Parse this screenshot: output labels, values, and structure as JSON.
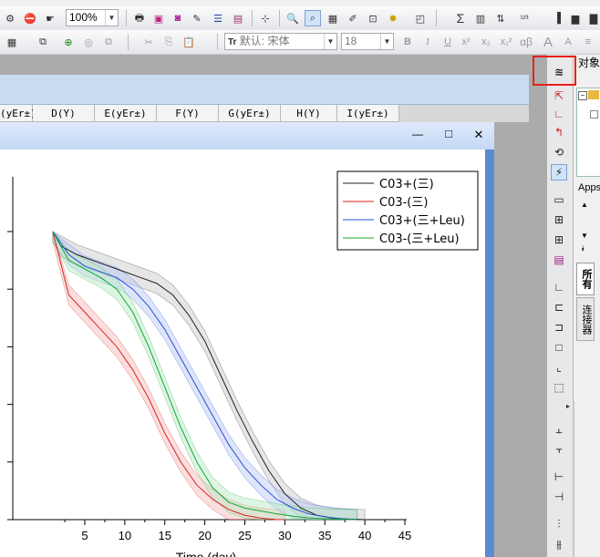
{
  "toolbar1": {
    "zoom": "100%",
    "sigma_icon": "Σ",
    "alphabeta_label": "αβ"
  },
  "toolbar2": {
    "font_prefix": "默认:",
    "font_name": "宋体",
    "font_size": "18",
    "bold": "B",
    "italic": "I",
    "underline": "U",
    "superscript": "x²",
    "subscript": "x₂",
    "supsub": "x₁²",
    "greek": "αβ",
    "grow_font": "A",
    "shrink_font": "A"
  },
  "worksheet": {
    "columns": [
      "(yEr±)",
      "D(Y)",
      "E(yEr±)",
      "F(Y)",
      "G(yEr±)",
      "H(Y)",
      "I(yEr±)"
    ]
  },
  "graph_window": {
    "minimize": "—",
    "maximize": "□",
    "close": "✕"
  },
  "right_panel": {
    "title": "对象",
    "apps_label": "Apps",
    "tab_all": "所有",
    "tab_connectors": "连接器"
  },
  "chart_data": {
    "type": "line",
    "xlabel": "Time (day)",
    "xlim": [
      -4,
      45
    ],
    "ylim": [
      0,
      1.0
    ],
    "xticks": [
      "5",
      "10",
      "15",
      "20",
      "25",
      "30",
      "35",
      "40",
      "45"
    ],
    "legend_position": "top-right",
    "series": [
      {
        "name": "C03+(三)",
        "color": "#202020",
        "band": "#c8c8c8",
        "x": [
          1,
          2,
          4,
          6,
          8,
          10,
          12,
          14,
          16,
          18,
          20,
          22,
          24,
          26,
          28,
          30,
          32,
          34,
          36,
          38,
          40
        ],
        "y": [
          1.0,
          0.95,
          0.92,
          0.9,
          0.88,
          0.86,
          0.84,
          0.82,
          0.78,
          0.71,
          0.62,
          0.5,
          0.38,
          0.27,
          0.17,
          0.09,
          0.04,
          0.015,
          0.005,
          0.002,
          0.0
        ]
      },
      {
        "name": "C03-(三)",
        "color": "#e02020",
        "band": "#f4b8b8",
        "x": [
          1,
          3,
          5,
          7,
          9,
          11,
          13,
          15,
          17,
          19,
          21,
          23,
          25,
          27,
          29,
          30
        ],
        "y": [
          1.0,
          0.78,
          0.72,
          0.66,
          0.6,
          0.52,
          0.42,
          0.3,
          0.2,
          0.12,
          0.07,
          0.035,
          0.015,
          0.005,
          0.0,
          0.0
        ]
      },
      {
        "name": "C03+(三+Leu)",
        "color": "#2850d8",
        "band": "#b8c6f4",
        "x": [
          1,
          3,
          5,
          7,
          9,
          11,
          13,
          15,
          17,
          19,
          21,
          23,
          25,
          27,
          29,
          31,
          33,
          35,
          37,
          39
        ],
        "y": [
          1.0,
          0.92,
          0.88,
          0.86,
          0.84,
          0.8,
          0.74,
          0.66,
          0.56,
          0.46,
          0.36,
          0.26,
          0.18,
          0.12,
          0.07,
          0.04,
          0.02,
          0.01,
          0.003,
          0.0
        ]
      },
      {
        "name": "C03-(三+Leu)",
        "color": "#10a830",
        "band": "#b8e8c4",
        "x": [
          1,
          3,
          5,
          7,
          9,
          11,
          13,
          15,
          17,
          19,
          21,
          23,
          25,
          27,
          29,
          31,
          33,
          35,
          37,
          39
        ],
        "y": [
          1.0,
          0.9,
          0.87,
          0.84,
          0.8,
          0.72,
          0.6,
          0.46,
          0.32,
          0.2,
          0.11,
          0.06,
          0.04,
          0.03,
          0.02,
          0.012,
          0.006,
          0.003,
          0.001,
          0.0
        ]
      }
    ]
  }
}
